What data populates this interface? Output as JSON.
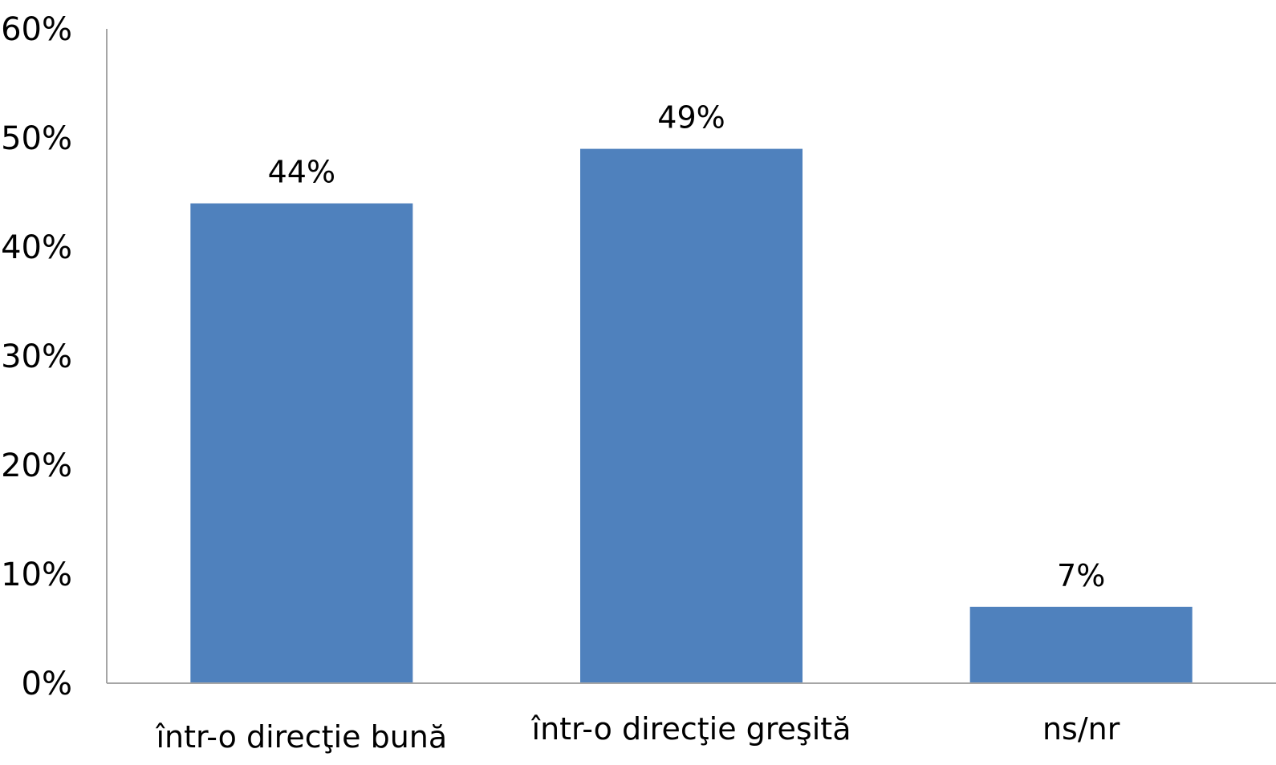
{
  "chart_data": {
    "type": "bar",
    "categories": [
      "într-o direcţie bună",
      "într-o direcţie greşită",
      "ns/nr"
    ],
    "values": [
      44,
      49,
      7
    ],
    "data_labels": [
      "44%",
      "49%",
      "7%"
    ],
    "ylim": [
      0,
      60
    ],
    "yticks": [
      0,
      10,
      20,
      30,
      40,
      50,
      60
    ],
    "ytick_labels": [
      "0%",
      "10%",
      "20%",
      "30%",
      "40%",
      "50%",
      "60%"
    ],
    "grid": false,
    "legend": "none",
    "colors": {
      "bar": "#4F81BD",
      "axis": "#A6A6A6",
      "text": "#000000"
    }
  }
}
